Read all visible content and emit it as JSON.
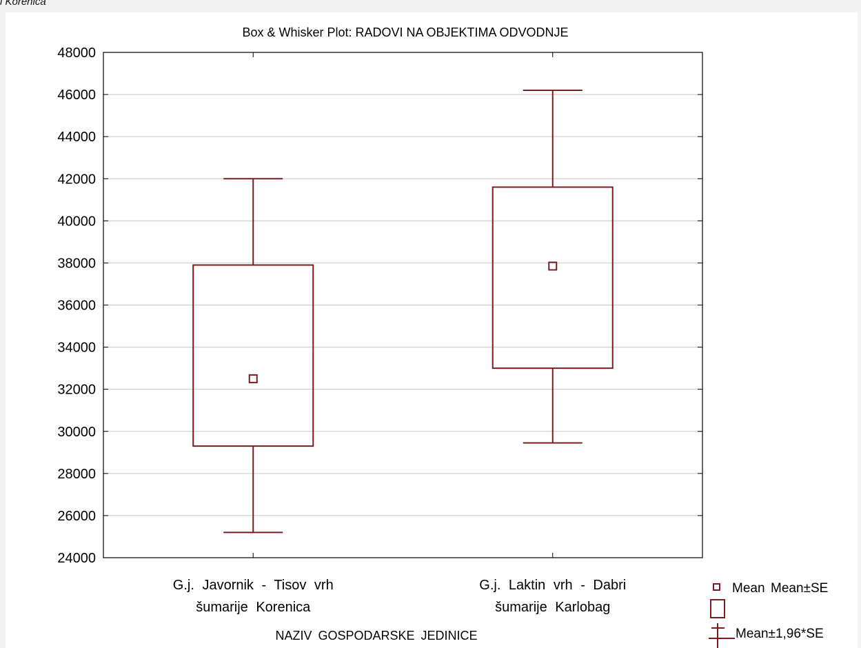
{
  "caption": "i Korenica",
  "chart_data": {
    "type": "box",
    "title": "Box & Whisker Plot: RADOVI NA OBJEKTIMA ODVODNJE",
    "xlabel": "NAZIV GOSPODARSKE JEDINICE",
    "ylabel": "",
    "ylim": [
      24000,
      48000
    ],
    "yticks": [
      24000,
      26000,
      28000,
      30000,
      32000,
      34000,
      36000,
      38000,
      40000,
      42000,
      44000,
      46000,
      48000
    ],
    "grid": true,
    "categories": [
      [
        "G.j. Javornik - Tisov vrh",
        "šumarije Korenica"
      ],
      [
        "G.j. Laktin vrh - Dabri",
        "šumarije Karlobag"
      ]
    ],
    "boxes": [
      {
        "mean": 32500,
        "se_low": 29300,
        "se_high": 37900,
        "ci_low": 25200,
        "ci_high": 42000
      },
      {
        "mean": 37850,
        "se_low": 33000,
        "se_high": 41600,
        "ci_low": 29450,
        "ci_high": 46200
      }
    ],
    "legend": {
      "position": "bottom-right",
      "entries": [
        "Mean",
        "Mean±SE",
        "Mean±1,96*SE"
      ]
    },
    "color": "#7b1c1c"
  }
}
